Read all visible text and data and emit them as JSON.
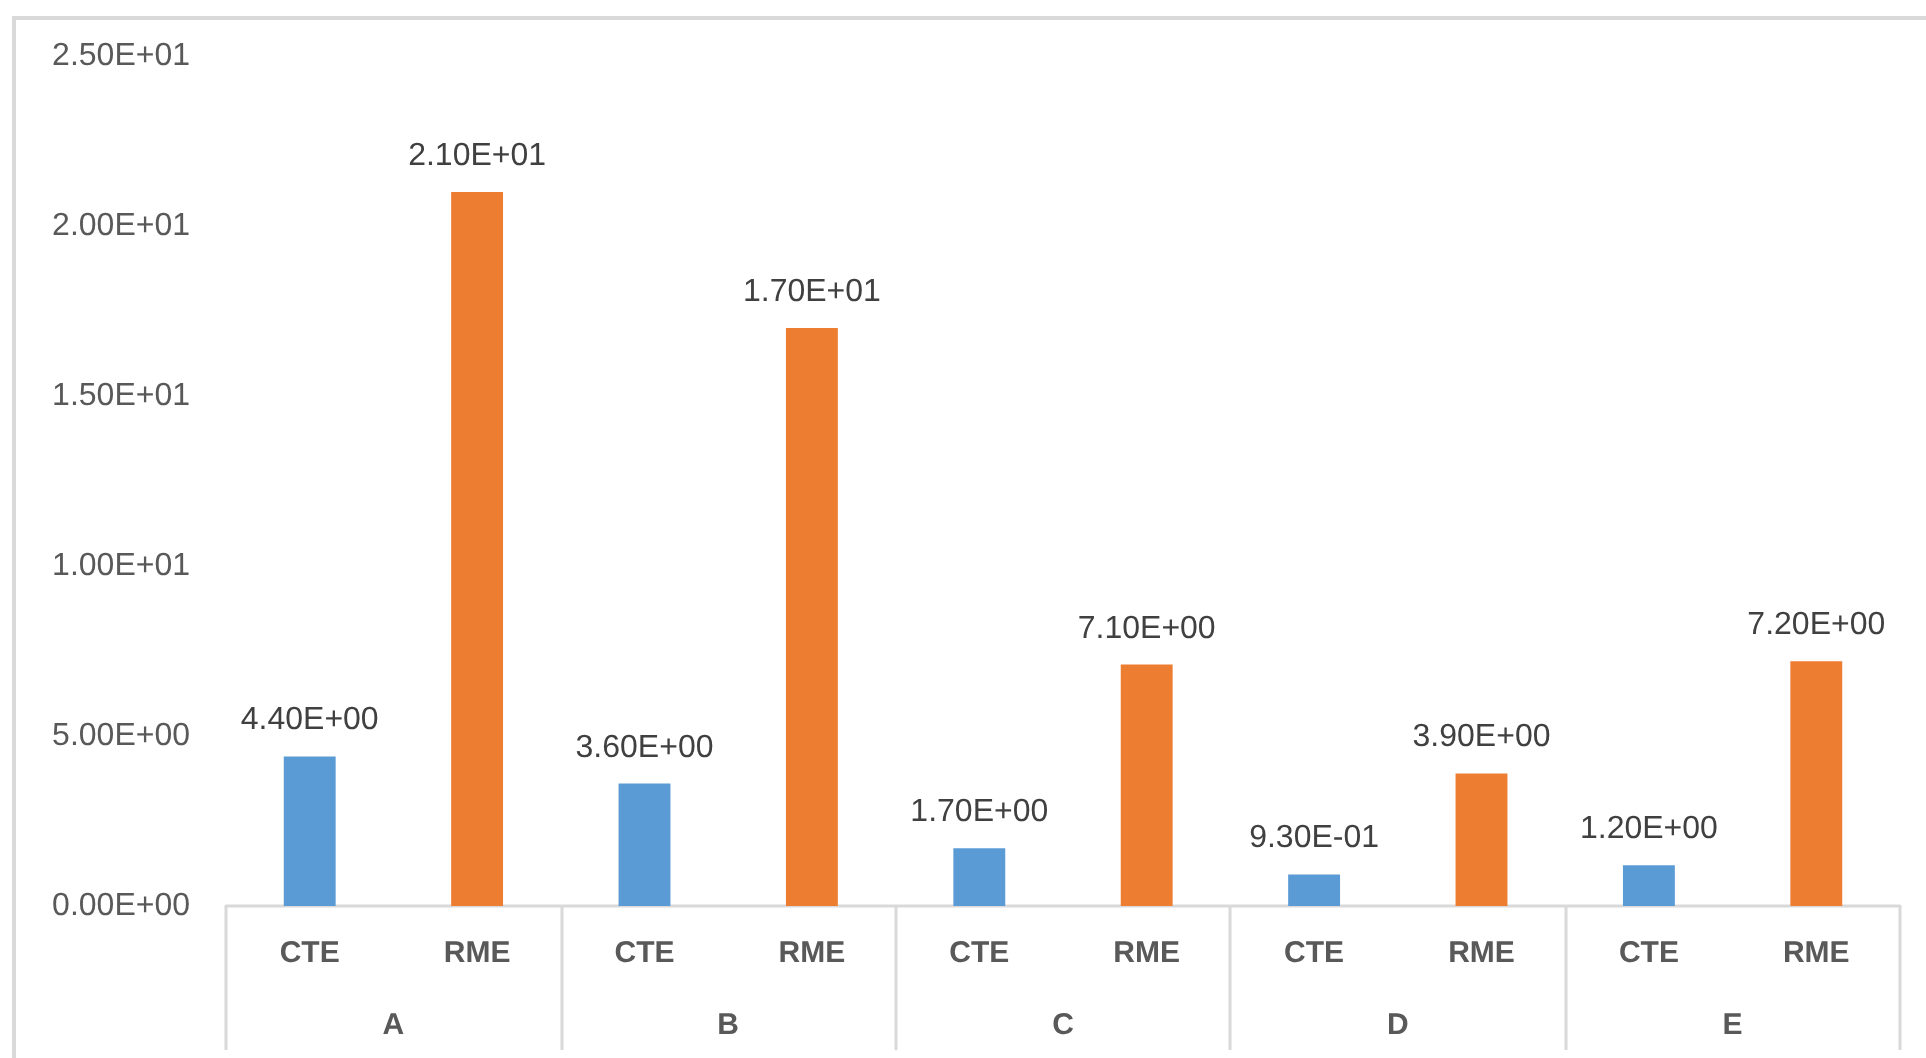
{
  "chart_data": {
    "type": "bar",
    "categories": [
      "A",
      "B",
      "C",
      "D",
      "E"
    ],
    "series": [
      {
        "name": "CTE",
        "color": "#5b9bd5",
        "values": [
          4.4,
          3.6,
          1.7,
          0.93,
          1.2
        ],
        "value_labels": [
          "4.40E+00",
          "3.60E+00",
          "1.70E+00",
          "9.30E-01",
          "1.20E+00"
        ]
      },
      {
        "name": "RME",
        "color": "#ed7d31",
        "values": [
          21,
          17,
          7.1,
          3.9,
          7.2
        ],
        "value_labels": [
          "2.10E+01",
          "1.70E+01",
          "7.10E+00",
          "3.90E+00",
          "7.20E+00"
        ]
      }
    ],
    "ylim": [
      0,
      25
    ],
    "yticks": [
      {
        "value": 0,
        "label": "0.00E+00"
      },
      {
        "value": 5,
        "label": "5.00E+00"
      },
      {
        "value": 10,
        "label": "1.00E+01"
      },
      {
        "value": 15,
        "label": "1.50E+01"
      },
      {
        "value": 20,
        "label": "2.00E+01"
      },
      {
        "value": 25,
        "label": "2.50E+01"
      }
    ],
    "grid": false
  }
}
